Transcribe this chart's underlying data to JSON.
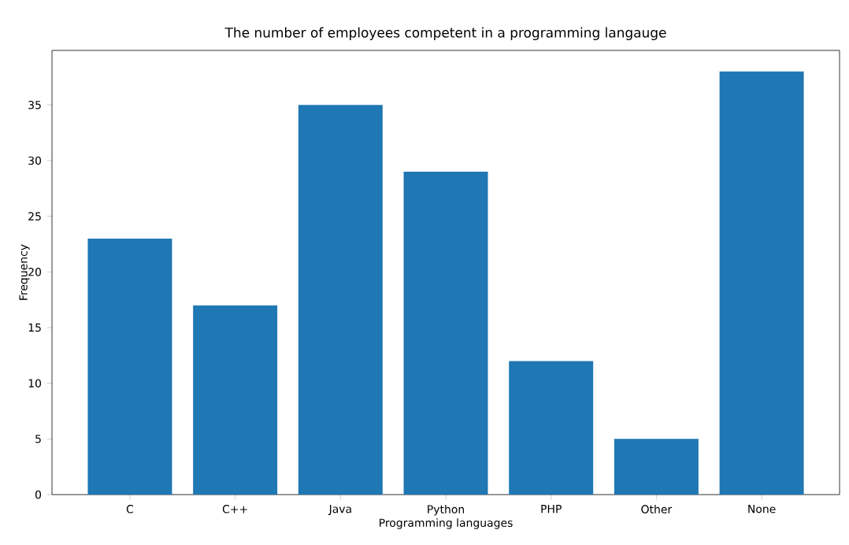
{
  "chart_data": {
    "type": "bar",
    "title": "The number of employees competent in a programming langauge",
    "xlabel": "Programming languages",
    "ylabel": "Frequency",
    "categories": [
      "C",
      "C++",
      "Java",
      "Python",
      "PHP",
      "Other",
      "None"
    ],
    "values": [
      23,
      17,
      35,
      29,
      12,
      5,
      38
    ],
    "color": "#1f77b4",
    "ylim": [
      0,
      39.9
    ],
    "yticks": [
      0,
      5,
      10,
      15,
      20,
      25,
      30,
      35
    ],
    "grid": false
  }
}
